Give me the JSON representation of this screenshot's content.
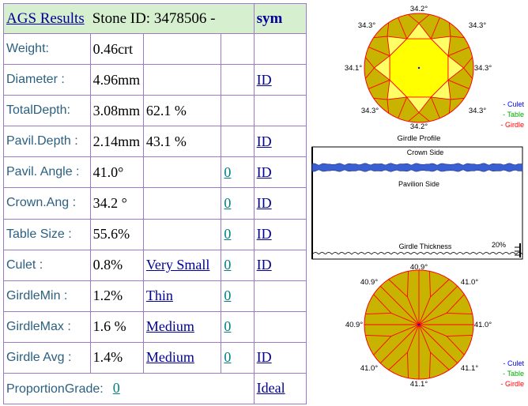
{
  "header": {
    "results_link": "AGS  Results",
    "stone_id": "Stone ID:  3478506 -",
    "sym_label": "sym"
  },
  "rows": {
    "weight": {
      "label": "Weight:",
      "value": "0.46crt"
    },
    "diameter": {
      "label": "Diameter :",
      "value": "4.96mm",
      "link": "ID"
    },
    "total_depth": {
      "label": "TotalDepth:",
      "value": "3.08mm",
      "pct": "62.1 %"
    },
    "pavil_depth": {
      "label": "Pavil.Depth :",
      "value": "2.14mm",
      "pct": "43.1 %",
      "link": "ID"
    },
    "pavil_angle": {
      "label": "Pavil. Angle :",
      "value": "41.0°",
      "grade": "0",
      "link": "ID"
    },
    "crown_angle": {
      "label": "Crown.Ang :",
      "value": "34.2 °",
      "grade": "0",
      "link": "ID"
    },
    "table_size": {
      "label": "Table Size :",
      "value": "55.6%",
      "grade": "0",
      "link": "ID"
    },
    "culet": {
      "label": "Culet :",
      "value": "0.8%",
      "desc": "Very Small",
      "grade": "0",
      "link": "ID"
    },
    "girdle_min": {
      "label": "GirdleMin :",
      "value": "1.2%",
      "desc": "Thin",
      "grade": "0"
    },
    "girdle_max": {
      "label": "GirdleMax :",
      "value": "1.6 %",
      "desc": "Medium",
      "grade": "0"
    },
    "girdle_avg": {
      "label": "Girdle Avg :",
      "value": "1.4%",
      "desc": "Medium",
      "grade": "0",
      "link": "ID"
    },
    "proportion": {
      "label": "ProportionGrade:",
      "grade": "0",
      "result": "Ideal"
    }
  },
  "crown_view": {
    "angles": {
      "top": "34.2°",
      "top_left": "34.3°",
      "top_right": "34.3°",
      "left": "34.1°",
      "right": "34.3°",
      "bottom_left": "34.3°",
      "bottom_right": "34.3°",
      "bottom": "34.2°"
    },
    "legend": {
      "culet": "- Culet",
      "table": "- Table",
      "girdle": "- Girdle"
    }
  },
  "profile": {
    "title": "Girdle Profile",
    "crown_side": "Crown Side",
    "pavilion_side": "Pavilion Side",
    "girdle_thickness": "Girdle Thickness",
    "scale": "20%"
  },
  "pavilion_view": {
    "angles": {
      "top": "40.9°",
      "top_left": "40.9°",
      "top_right": "41.0°",
      "left": "40.9°",
      "right": "41.0°",
      "bottom_left": "41.0°",
      "bottom_right": "41.1°",
      "bottom": "41.1°"
    },
    "legend": {
      "culet": "- Culet",
      "table": "- Table",
      "girdle": "- Girdle"
    }
  },
  "colors": {
    "facet_fill": "#c8b400",
    "table_fill": "#ffff00",
    "facet_line": "#ff0000",
    "circle_fill": "#ffff66",
    "culet": "#0000ff",
    "table": "#00aa00",
    "girdle": "#ff0000",
    "header_bg": "#d6efcf",
    "grid": "#9b7cc4"
  }
}
